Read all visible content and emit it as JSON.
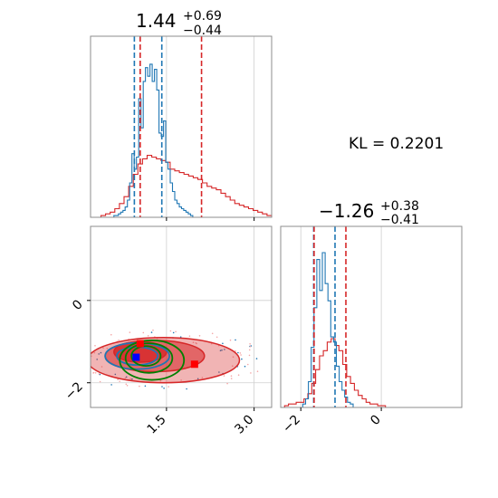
{
  "chart_data": {
    "type": "corner",
    "annotation": "KL = 0.2201",
    "grid": true,
    "colors": {
      "blue": "#1f77b4",
      "red": "#d62728",
      "green": "#008000",
      "marker_blue": "#0000ff",
      "marker_red": "#ff0000"
    },
    "parameters": [
      {
        "title_value": "1.44",
        "title_plus": "+0.69",
        "title_minus": "−0.44",
        "range": [
          0.2,
          3.3
        ],
        "ticks": [
          {
            "value": 1.5,
            "label": "1.5"
          },
          {
            "value": 3.0,
            "label": "3.0"
          }
        ],
        "blue_lines": [
          0.95,
          1.42
        ],
        "red_lines": [
          1.05,
          2.1
        ],
        "blue_hist": {
          "x0": 0.6,
          "x1": 1.95,
          "values": [
            0.01,
            0.01,
            0.02,
            0.03,
            0.04,
            0.06,
            0.1,
            0.2,
            0.37,
            0.28,
            0.35,
            0.69,
            0.52,
            0.79,
            0.87,
            0.82,
            0.89,
            0.79,
            0.86,
            0.74,
            0.49,
            0.47,
            0.56,
            0.32,
            0.28,
            0.2,
            0.15,
            0.1,
            0.08,
            0.06,
            0.05,
            0.04,
            0.03,
            0.02,
            0.01
          ]
        },
        "red_hist": {
          "x0": 0.3,
          "x1": 3.3,
          "values": [
            0.0,
            0.01,
            0.02,
            0.03,
            0.05,
            0.08,
            0.12,
            0.18,
            0.25,
            0.31,
            0.34,
            0.36,
            0.35,
            0.34,
            0.33,
            0.32,
            0.28,
            0.27,
            0.26,
            0.25,
            0.24,
            0.23,
            0.22,
            0.2,
            0.18,
            0.17,
            0.16,
            0.14,
            0.12,
            0.1,
            0.08,
            0.07,
            0.06,
            0.05,
            0.04,
            0.03,
            0.02,
            0.01
          ]
        }
      },
      {
        "title_value": "−1.26",
        "title_plus": "+0.38",
        "title_minus": "−0.41",
        "range": [
          -2.5,
          2.0
        ],
        "ticks": [
          {
            "value": -2,
            "label": "−2"
          },
          {
            "value": 0,
            "label": "0"
          }
        ],
        "blue_lines": [
          -1.68,
          -1.15
        ],
        "red_lines": [
          -1.67,
          -0.88
        ],
        "blue_hist": {
          "x0": -1.95,
          "x1": -0.7,
          "values": [
            0.02,
            0.05,
            0.15,
            0.35,
            0.58,
            0.86,
            0.68,
            0.9,
            0.72,
            0.62,
            0.41,
            0.38,
            0.24,
            0.15,
            0.1,
            0.06,
            0.03,
            0.02
          ]
        },
        "red_hist": {
          "x0": -2.5,
          "x1": 0.2,
          "values": [
            0.0,
            0.01,
            0.02,
            0.02,
            0.03,
            0.03,
            0.05,
            0.08,
            0.14,
            0.22,
            0.3,
            0.33,
            0.38,
            0.4,
            0.36,
            0.33,
            0.25,
            0.18,
            0.14,
            0.1,
            0.07,
            0.05,
            0.03,
            0.02,
            0.02,
            0.01,
            0.01,
            0.0
          ]
        }
      }
    ],
    "joint": {
      "x_range": [
        0.2,
        3.3
      ],
      "y_range": [
        -2.6,
        1.8
      ],
      "x_ticks": [
        {
          "value": 1.5,
          "label": "1.5"
        },
        {
          "value": 3.0,
          "label": "3.0"
        }
      ],
      "y_ticks": [
        {
          "value": 0,
          "label": "0"
        },
        {
          "value": -2,
          "label": "−2"
        }
      ],
      "red_contours": [
        {
          "level": "outer",
          "cx": 1.45,
          "cy": -1.45,
          "rx": 1.3,
          "ry": 0.55,
          "alpha": 0.35
        },
        {
          "level": "mid",
          "cx": 1.3,
          "cy": -1.35,
          "rx": 0.85,
          "ry": 0.38,
          "alpha": 0.55
        },
        {
          "level": "inner",
          "cx": 1.05,
          "cy": -1.25,
          "rx": 0.45,
          "ry": 0.25,
          "alpha": 0.8
        }
      ],
      "blue_contours": [
        {
          "cx": 1.0,
          "cy": -1.35,
          "rx": 0.55,
          "ry": 0.32
        },
        {
          "cx": 1.0,
          "cy": -1.35,
          "rx": 0.35,
          "ry": 0.22
        }
      ],
      "green_contours": [
        {
          "cx": 1.25,
          "cy": -1.45,
          "rx": 0.55,
          "ry": 0.48
        },
        {
          "cx": 1.2,
          "cy": -1.4,
          "rx": 0.4,
          "ry": 0.36
        },
        {
          "cx": 1.15,
          "cy": -1.35,
          "rx": 0.25,
          "ry": 0.24
        }
      ],
      "markers": [
        {
          "name": "blue-marker",
          "x": 0.98,
          "y": -1.38,
          "color": "#0000ff"
        },
        {
          "name": "red-marker",
          "x": 1.05,
          "y": -1.05,
          "color": "#ff0000"
        },
        {
          "name": "red-marker-2",
          "x": 1.98,
          "y": -1.55,
          "color": "#ff0000"
        }
      ]
    }
  }
}
